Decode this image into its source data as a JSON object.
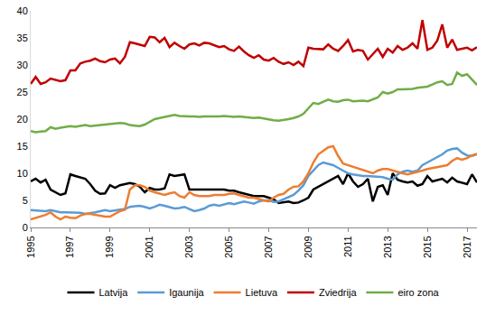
{
  "chart_data": {
    "type": "line",
    "categories": [
      "1995",
      null,
      null,
      null,
      null,
      null,
      null,
      null,
      "1997",
      null,
      null,
      null,
      null,
      null,
      null,
      null,
      "1999",
      null,
      null,
      null,
      null,
      null,
      null,
      null,
      "2001",
      null,
      null,
      null,
      null,
      null,
      null,
      null,
      "2003",
      null,
      null,
      null,
      null,
      null,
      null,
      null,
      "2005",
      null,
      null,
      null,
      null,
      null,
      null,
      null,
      "2007",
      null,
      null,
      null,
      null,
      null,
      null,
      null,
      "2009",
      null,
      null,
      null,
      null,
      null,
      null,
      null,
      "2011",
      null,
      null,
      null,
      null,
      null,
      null,
      null,
      "2013",
      null,
      null,
      null,
      null,
      null,
      null,
      null,
      "2015",
      null,
      null,
      null,
      null,
      null,
      null,
      null,
      "2017",
      null,
      null
    ],
    "series": [
      {
        "name": "Latvija",
        "color": "#000000",
        "values": [
          8.5,
          9.0,
          8.3,
          8.8,
          7.0,
          6.5,
          6.0,
          6.3,
          9.8,
          9.5,
          9.3,
          9.0,
          8.0,
          6.8,
          6.2,
          6.3,
          7.8,
          7.3,
          7.8,
          8.0,
          8.2,
          8.0,
          7.5,
          6.5,
          7.3,
          7.0,
          7.0,
          7.2,
          9.8,
          9.5,
          9.7,
          9.8,
          7.0,
          7.0,
          7.0,
          7.0,
          7.0,
          7.0,
          7.0,
          7.0,
          6.8,
          6.8,
          6.5,
          6.3,
          6.0,
          5.8,
          5.8,
          5.8,
          5.5,
          5.2,
          4.5,
          4.7,
          4.8,
          4.5,
          4.6,
          5.0,
          5.5,
          7.0,
          7.5,
          8.0,
          8.5,
          9.0,
          9.5,
          8.0,
          10.0,
          8.5,
          7.5,
          8.0,
          9.0,
          4.8,
          7.5,
          7.8,
          6.0,
          10.0,
          8.8,
          8.5,
          8.3,
          8.5,
          7.7,
          8.0,
          9.5,
          8.5,
          8.8,
          9.0,
          8.3,
          9.2,
          8.5,
          8.2,
          8.0,
          9.8,
          8.3
        ]
      },
      {
        "name": "Igaunija",
        "color": "#5B9BD5",
        "values": [
          3.2,
          3.1,
          3.0,
          3.0,
          3.2,
          3.0,
          2.8,
          2.8,
          2.8,
          2.7,
          2.7,
          2.5,
          2.6,
          2.8,
          3.0,
          3.2,
          3.0,
          3.2,
          3.3,
          3.4,
          3.8,
          3.9,
          4.0,
          3.8,
          3.5,
          3.8,
          4.2,
          4.0,
          3.7,
          3.5,
          3.6,
          3.8,
          3.4,
          3.0,
          3.2,
          3.5,
          4.0,
          4.2,
          4.0,
          4.3,
          4.5,
          4.3,
          4.6,
          4.8,
          4.6,
          4.4,
          4.8,
          5.0,
          5.0,
          4.7,
          4.8,
          5.2,
          5.5,
          6.0,
          6.8,
          7.8,
          9.5,
          10.5,
          11.5,
          12.0,
          11.8,
          11.5,
          11.0,
          10.5,
          10.0,
          9.8,
          9.6,
          9.5,
          9.5,
          9.4,
          9.4,
          9.3,
          9.0,
          8.8,
          9.8,
          10.3,
          10.5,
          10.3,
          10.5,
          11.5,
          12.0,
          12.5,
          13.0,
          13.5,
          14.2,
          14.5,
          14.6,
          13.8,
          13.3,
          13.2,
          13.5
        ]
      },
      {
        "name": "Lietuva",
        "color": "#ED7D31",
        "values": [
          1.5,
          1.8,
          2.0,
          2.3,
          2.8,
          2.0,
          1.5,
          2.0,
          1.8,
          1.7,
          2.2,
          2.5,
          2.5,
          2.3,
          2.2,
          2.0,
          2.0,
          2.5,
          3.0,
          3.3,
          7.0,
          7.8,
          7.8,
          7.5,
          6.8,
          6.5,
          6.2,
          6.0,
          6.3,
          6.5,
          5.8,
          5.5,
          6.5,
          6.0,
          5.8,
          5.8,
          5.8,
          6.0,
          6.0,
          6.0,
          6.2,
          6.3,
          6.0,
          5.7,
          5.5,
          5.5,
          5.2,
          5.0,
          4.8,
          5.5,
          6.0,
          6.2,
          7.0,
          7.5,
          7.6,
          8.5,
          10.0,
          12.0,
          13.5,
          14.2,
          14.8,
          15.0,
          13.2,
          11.8,
          11.5,
          11.2,
          10.8,
          10.5,
          10.3,
          10.0,
          10.5,
          10.8,
          10.8,
          10.5,
          10.3,
          10.0,
          9.8,
          10.0,
          10.3,
          10.5,
          10.8,
          11.0,
          11.2,
          11.3,
          11.5,
          12.3,
          12.8,
          12.5,
          12.8,
          13.3,
          13.6
        ]
      },
      {
        "name": "Zviedrija",
        "color": "#C00000",
        "values": [
          26.5,
          27.8,
          26.5,
          26.8,
          27.5,
          27.3,
          27.0,
          27.2,
          29.0,
          29.0,
          30.3,
          30.6,
          30.8,
          31.2,
          30.7,
          30.5,
          31.0,
          31.2,
          30.3,
          31.5,
          34.2,
          34.0,
          33.8,
          33.5,
          35.2,
          35.1,
          34.2,
          35.0,
          33.3,
          34.1,
          33.5,
          33.0,
          33.8,
          34.0,
          33.6,
          34.1,
          34.0,
          33.6,
          33.3,
          33.5,
          32.9,
          32.6,
          33.4,
          32.5,
          31.8,
          31.3,
          31.8,
          31.0,
          30.8,
          31.3,
          30.6,
          30.2,
          30.5,
          30.0,
          30.6,
          29.8,
          33.2,
          33.0,
          33.0,
          32.9,
          33.8,
          33.0,
          32.6,
          33.5,
          34.6,
          32.5,
          32.8,
          32.6,
          31.0,
          32.0,
          33.0,
          31.5,
          33.0,
          32.3,
          33.5,
          32.8,
          33.2,
          34.0,
          33.0,
          38.3,
          32.8,
          33.2,
          34.5,
          37.5,
          33.2,
          34.7,
          32.8,
          33.0,
          33.2,
          32.7,
          33.3
        ]
      },
      {
        "name": "eiro zona",
        "color": "#70AD47",
        "values": [
          17.8,
          17.6,
          17.7,
          17.8,
          18.5,
          18.2,
          18.4,
          18.5,
          18.7,
          18.6,
          18.7,
          18.9,
          18.7,
          18.8,
          18.9,
          19.0,
          19.1,
          19.2,
          19.3,
          19.2,
          18.9,
          18.8,
          18.7,
          19.0,
          19.5,
          20.0,
          20.2,
          20.4,
          20.7,
          20.8,
          20.6,
          20.5,
          20.5,
          20.5,
          20.4,
          20.5,
          20.5,
          20.4,
          20.5,
          20.6,
          20.5,
          20.4,
          20.5,
          20.4,
          20.3,
          20.2,
          20.3,
          20.1,
          19.9,
          19.8,
          19.7,
          19.8,
          20.0,
          20.2,
          20.5,
          21.0,
          22.0,
          23.0,
          22.8,
          23.2,
          23.6,
          23.3,
          23.2,
          23.5,
          23.6,
          23.3,
          23.4,
          23.4,
          23.3,
          23.6,
          24.0,
          25.0,
          24.7,
          25.0,
          25.5,
          25.5,
          25.5,
          25.6,
          25.8,
          25.9,
          26.0,
          26.4,
          26.8,
          27.0,
          26.3,
          26.5,
          28.6,
          28.0,
          28.3,
          27.3,
          26.3
        ]
      }
    ],
    "ylim": [
      0,
      40
    ],
    "yticks": [
      0,
      5,
      10,
      15,
      20,
      25,
      30,
      35,
      40
    ],
    "grid": false,
    "legend": "bottom"
  }
}
